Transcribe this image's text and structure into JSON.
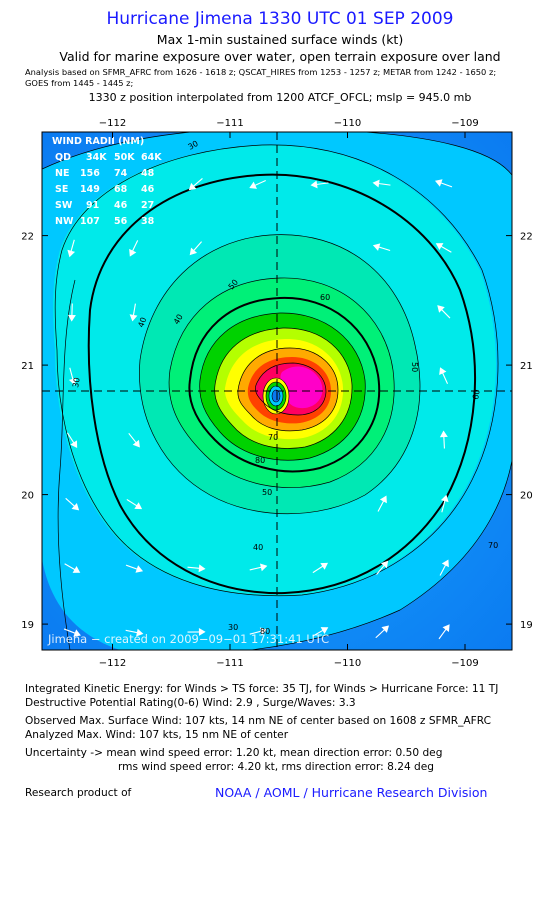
{
  "header": {
    "title": "Hurricane Jimena 1330 UTC 01 SEP 2009",
    "subtitle1": "Max 1-min sustained surface winds (kt)",
    "subtitle2": "Valid for marine exposure over water, open terrain exposure over land",
    "analysis_line1": "Analysis based on  SFMR_AFRC from 1626 - 1618 z;  QSCAT_HIRES from 1253 - 1257 z;  METAR from 1242 - 1650 z;",
    "analysis_line2": "GOES from 1445 - 1445 z;",
    "position_line": "1330 z position interpolated from 1200 ATCF_OFCL; mslp = 945.0 mb"
  },
  "map": {
    "x_range": [
      -112.6,
      -108.6
    ],
    "y_range": [
      18.8,
      22.8
    ],
    "lon_ticks": [
      -112,
      -111,
      -110,
      -109
    ],
    "lat_ticks": [
      19,
      20,
      21,
      22
    ],
    "lon_labels": [
      "−112",
      "−111",
      "−110",
      "−109"
    ],
    "lat_labels": [
      "19",
      "20",
      "21",
      "22"
    ],
    "center": {
      "lon": -110.6,
      "lat": 20.8
    },
    "contour_labels": [
      "30",
      "40",
      "50",
      "60",
      "70",
      "80",
      "50",
      "40",
      "30",
      "30",
      "40",
      "50",
      "60",
      "70",
      "80"
    ],
    "credit": "Jimena − created on 2009−09−01 17:31:41 UTC",
    "colors": {
      "c30": "#00c8ff",
      "c40": "#00eaea",
      "c50": "#00e8b4",
      "c60": "#00f078",
      "c70": "#00d200",
      "c80": "#b4ff00",
      "c90": "#ffff00",
      "c100": "#ffaa00",
      "c110": "#ff4000",
      "c120": "#ff0060",
      "c130": "#ff00c8"
    }
  },
  "wind_radii": {
    "title": "WIND RADII (NM)",
    "header": [
      "QD",
      "34K",
      "50K",
      "64K"
    ],
    "rows": [
      [
        "NE",
        "156",
        "74",
        "48"
      ],
      [
        "SE",
        "149",
        "68",
        "46"
      ],
      [
        "SW",
        "91",
        "46",
        "27"
      ],
      [
        "NW",
        "107",
        "56",
        "38"
      ]
    ]
  },
  "info": {
    "ike": "Integrated Kinetic Energy:  for Winds > TS force: 35 TJ,  for Winds > Hurricane Force: 11 TJ",
    "dpr": "Destructive Potential Rating(0-6)   Wind: 2.9 , Surge/Waves: 3.3",
    "observed_max": "Observed Max. Surface Wind: 107 kts, 14 nm NE of center based on 1608 z SFMR_AFRC",
    "analyzed_max": "Analyzed Max. Wind: 107 kts, 15 nm NE of center",
    "uncertainty1": "Uncertainty -> mean wind speed error: 1.20 kt,   mean direction error: 0.50 deg",
    "uncertainty2": "rms wind speed error: 4.20 kt,   rms direction error: 8.24 deg",
    "research": "Research product of",
    "noaa": "NOAA / AOML / Hurricane Research Division"
  }
}
